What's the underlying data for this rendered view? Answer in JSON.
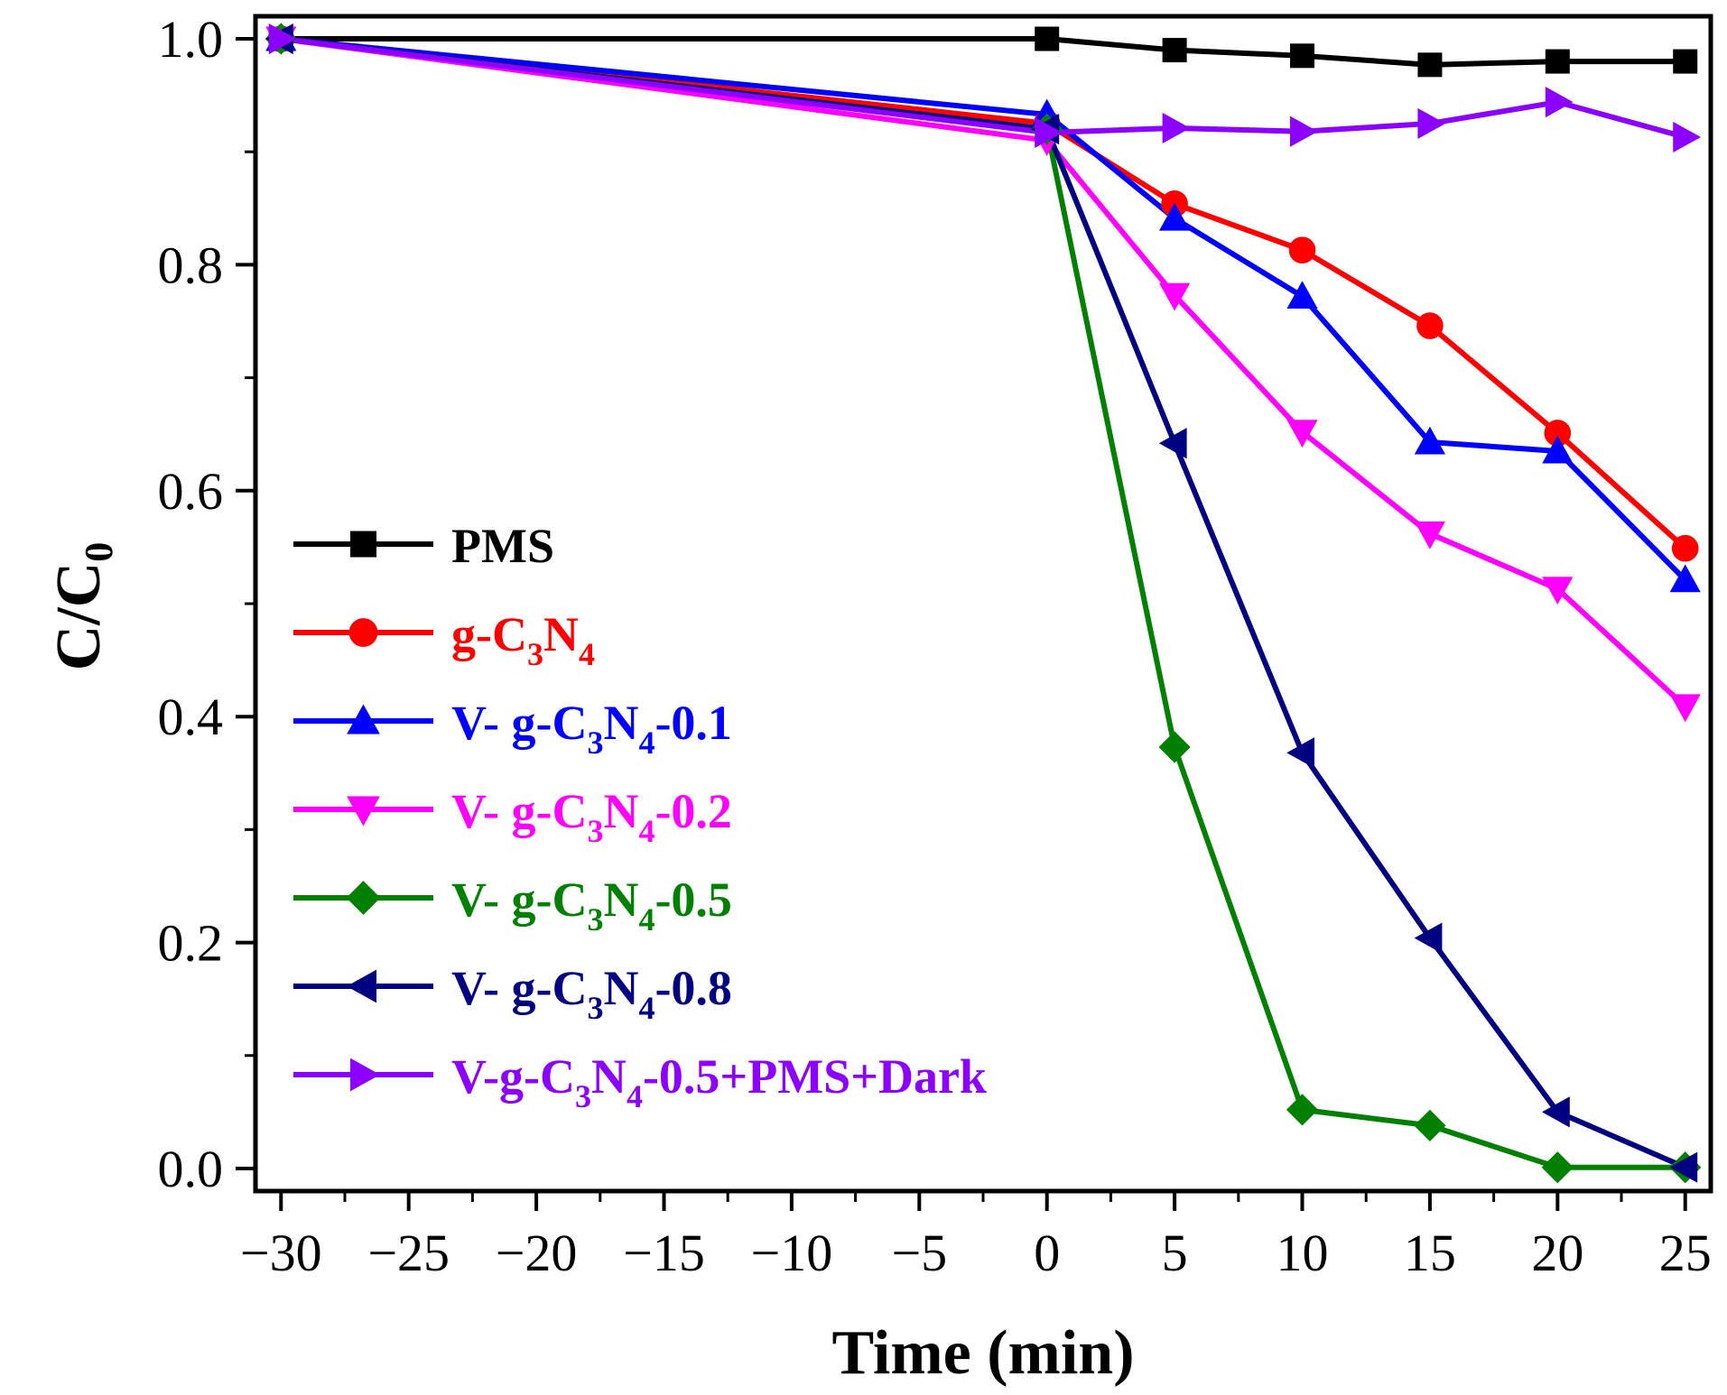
{
  "chart_data": {
    "type": "line",
    "title": "",
    "xlabel": "Time (min)",
    "ylabel": {
      "main": "C/C",
      "sub": "0"
    },
    "x": [
      -30,
      0,
      5,
      10,
      15,
      20,
      25
    ],
    "xlim": [
      -31,
      26
    ],
    "ylim": [
      -0.02,
      1.02
    ],
    "xticks": [
      -30,
      -25,
      -20,
      -15,
      -10,
      -5,
      0,
      5,
      10,
      15,
      20,
      25
    ],
    "xtick_labels": [
      "−30",
      "−25",
      "−20",
      "−15",
      "−10",
      "−5",
      "0",
      "5",
      "10",
      "15",
      "20",
      "25"
    ],
    "yticks": [
      0.0,
      0.2,
      0.4,
      0.6,
      0.8,
      1.0
    ],
    "ytick_labels": [
      "0.0",
      "0.2",
      "0.4",
      "0.6",
      "0.8",
      "1.0"
    ],
    "legend_position": "center-left",
    "series": [
      {
        "name": "PMS",
        "label_parts": [
          [
            "PMS",
            ""
          ]
        ],
        "color": "#000000",
        "marker": "square",
        "values": [
          1.0,
          1.0,
          0.99,
          0.985,
          0.977,
          0.98,
          0.98
        ]
      },
      {
        "name": "g-C3N4",
        "label_parts": [
          [
            "g-C",
            ""
          ],
          [
            "3",
            "sub"
          ],
          [
            "N",
            ""
          ],
          [
            "4",
            "sub"
          ]
        ],
        "color": "#ff0000",
        "marker": "circle",
        "values": [
          1.0,
          0.925,
          0.854,
          0.813,
          0.746,
          0.651,
          0.549
        ]
      },
      {
        "name": "V- g-C3N4-0.1",
        "label_parts": [
          [
            "V- g-C",
            ""
          ],
          [
            "3",
            "sub"
          ],
          [
            "N",
            ""
          ],
          [
            "4",
            "sub"
          ],
          [
            "-0.1",
            ""
          ]
        ],
        "color": "#0000ff",
        "marker": "triangle-up",
        "values": [
          1.0,
          0.933,
          0.841,
          0.772,
          0.643,
          0.635,
          0.521
        ]
      },
      {
        "name": "V- g-C3N4-0.2",
        "label_parts": [
          [
            "V- g-C",
            ""
          ],
          [
            "3",
            "sub"
          ],
          [
            "N",
            ""
          ],
          [
            "4",
            "sub"
          ],
          [
            "-0.2",
            ""
          ]
        ],
        "color": "#ff00ff",
        "marker": "triangle-down",
        "values": [
          1.0,
          0.91,
          0.773,
          0.652,
          0.562,
          0.513,
          0.409
        ]
      },
      {
        "name": "V- g-C3N4-0.5",
        "label_parts": [
          [
            "V- g-C",
            ""
          ],
          [
            "3",
            "sub"
          ],
          [
            "N",
            ""
          ],
          [
            "4",
            "sub"
          ],
          [
            "-0.5",
            ""
          ]
        ],
        "color": "#008000",
        "marker": "diamond",
        "values": [
          1.0,
          0.92,
          0.373,
          0.052,
          0.038,
          0.001,
          0.001
        ]
      },
      {
        "name": "V- g-C3N4-0.8",
        "label_parts": [
          [
            "V- g-C",
            ""
          ],
          [
            "3",
            "sub"
          ],
          [
            "N",
            ""
          ],
          [
            "4",
            "sub"
          ],
          [
            "-0.8",
            ""
          ]
        ],
        "color": "#000080",
        "marker": "triangle-left",
        "values": [
          1.0,
          0.92,
          0.642,
          0.368,
          0.204,
          0.05,
          0.001
        ]
      },
      {
        "name": "V-g-C3N4-0.5+PMS+Dark",
        "label_parts": [
          [
            "V-g-C",
            ""
          ],
          [
            "3",
            "sub"
          ],
          [
            "N",
            ""
          ],
          [
            "4",
            "sub"
          ],
          [
            "-0.5+PMS+Dark",
            ""
          ]
        ],
        "color": "#8b00ff",
        "marker": "triangle-right",
        "values": [
          1.0,
          0.917,
          0.921,
          0.918,
          0.925,
          0.944,
          0.913
        ]
      }
    ]
  }
}
